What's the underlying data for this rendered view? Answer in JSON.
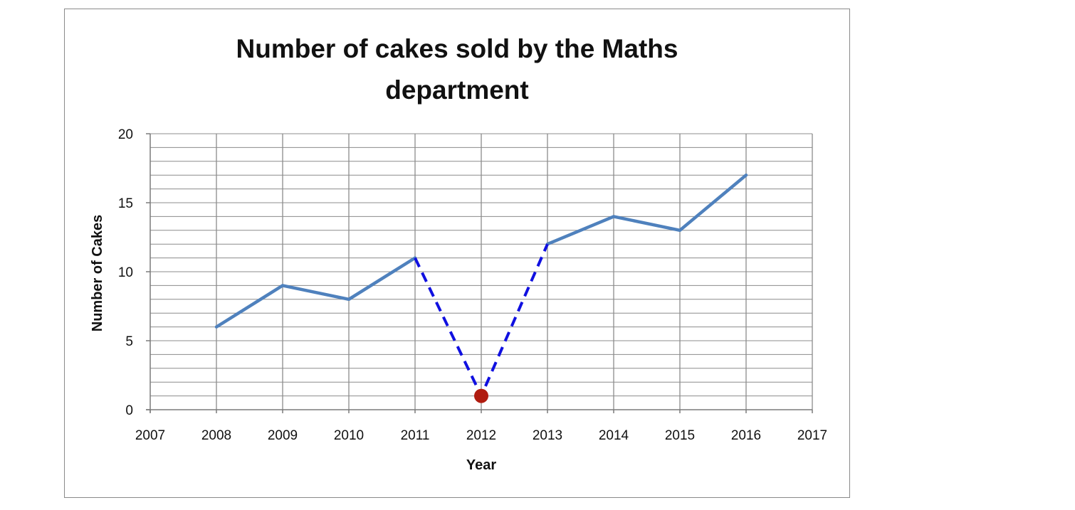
{
  "chart_data": {
    "type": "line",
    "title": "Number of cakes sold by the Maths department",
    "title_lines": [
      "Number of cakes sold by the Maths",
      "department"
    ],
    "xlabel": "Year",
    "ylabel": "Number of Cakes",
    "xlim": [
      2007,
      2017
    ],
    "ylim": [
      0,
      20
    ],
    "x_ticks": [
      2007,
      2008,
      2009,
      2010,
      2011,
      2012,
      2013,
      2014,
      2015,
      2016,
      2017
    ],
    "y_ticks": [
      0,
      5,
      10,
      15,
      20
    ],
    "y_minor_step": 1,
    "grid": true,
    "series": [
      {
        "x": [
          2008,
          2009,
          2010,
          2011
        ],
        "y": [
          6,
          9,
          8,
          11
        ],
        "color": "#4f81bd",
        "style": "solid"
      },
      {
        "x": [
          2013,
          2014,
          2015,
          2016
        ],
        "y": [
          12,
          14,
          13,
          17
        ],
        "color": "#4f81bd",
        "style": "solid"
      },
      {
        "x": [
          2011,
          2012,
          2013
        ],
        "y": [
          11,
          1,
          12
        ],
        "color": "#1010e0",
        "style": "dashed"
      }
    ],
    "highlight_point": {
      "x": 2012,
      "y": 1,
      "color": "#b01c10"
    }
  }
}
